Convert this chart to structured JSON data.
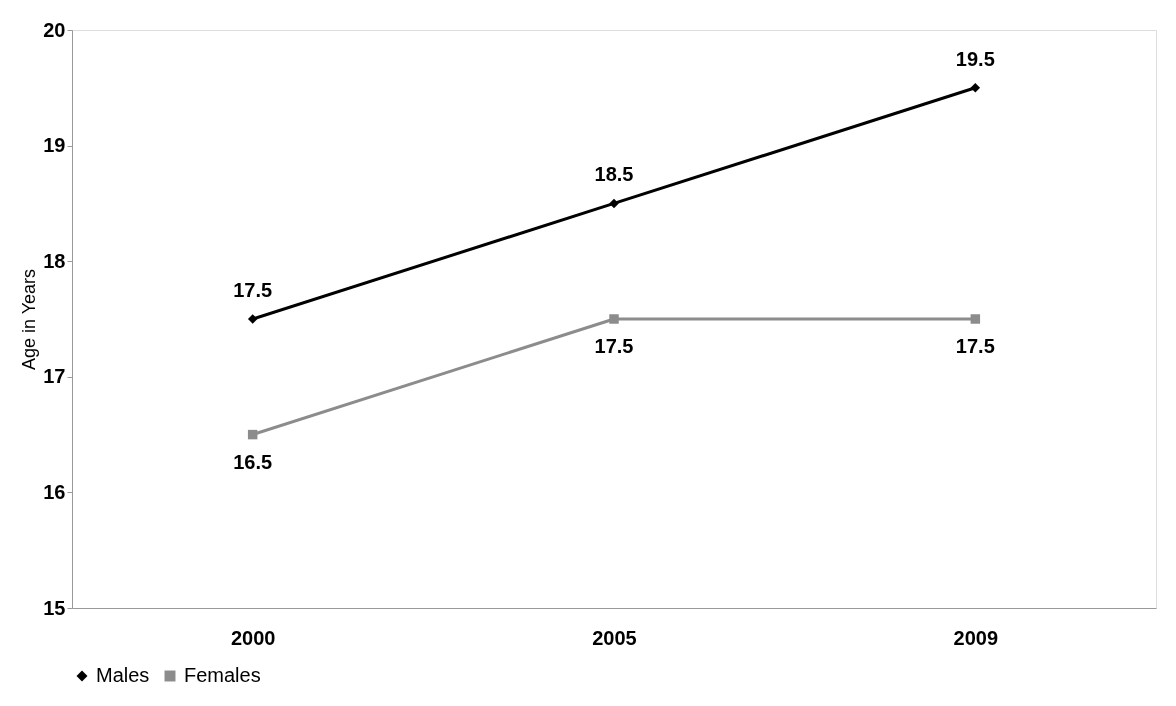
{
  "chart_data": {
    "type": "line",
    "ylabel": "Age in Years",
    "categories": [
      "2000",
      "2005",
      "2009"
    ],
    "series": [
      {
        "name": "Males",
        "color": "#000000",
        "marker": "diamond",
        "values": [
          17.5,
          18.5,
          19.5
        ]
      },
      {
        "name": "Females",
        "color": "#8c8c8c",
        "marker": "square",
        "values": [
          16.5,
          17.5,
          17.5
        ]
      }
    ],
    "ylim": [
      15,
      20
    ],
    "yticks": [
      15,
      16,
      17,
      18,
      19,
      20
    ],
    "grid": false,
    "legend": "bottom",
    "data_labels": true,
    "line_style": "solid"
  }
}
